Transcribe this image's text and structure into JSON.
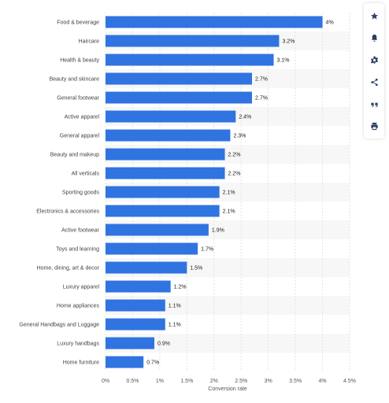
{
  "chart_data": {
    "type": "bar",
    "orientation": "horizontal",
    "categories": [
      "Food & beverage",
      "Haircare",
      "Health & beauty",
      "Beauty and skincare",
      "General footwear",
      "Active apparel",
      "General apparel",
      "Beauty and makeup",
      "All verticals",
      "Sporting goods",
      "Electronics & accessories",
      "Active footwear",
      "Toys and learning",
      "Home, dining, art & decor",
      "Luxury apparel",
      "Home appliances",
      "General Handbags and Luggage",
      "Luxury handbags",
      "Home furniture"
    ],
    "values": [
      4,
      3.2,
      3.1,
      2.7,
      2.7,
      2.4,
      2.3,
      2.2,
      2.2,
      2.1,
      2.1,
      1.9,
      1.7,
      1.5,
      1.2,
      1.1,
      1.1,
      0.9,
      0.7
    ],
    "value_labels": [
      "4%",
      "3.2%",
      "3.1%",
      "2.7%",
      "2.7%",
      "2.4%",
      "2.3%",
      "2.2%",
      "2.2%",
      "2.1%",
      "2.1%",
      "1.9%",
      "1.7%",
      "1.5%",
      "1.2%",
      "1.1%",
      "1.1%",
      "0.9%",
      "0.7%"
    ],
    "xlabel": "Conversion rate",
    "xlim": [
      0,
      4.5
    ],
    "xticks": [
      0,
      0.5,
      1,
      1.5,
      2,
      2.5,
      3,
      3.5,
      4,
      4.5
    ],
    "xtick_labels": [
      "0%",
      "0.5%",
      "1%",
      "1.5%",
      "2%",
      "2.5%",
      "3%",
      "3.5%",
      "4%",
      "4.5%"
    ],
    "bar_color": "#2f74e0",
    "grid": true
  },
  "toolbar": {
    "items": [
      {
        "name": "star-icon"
      },
      {
        "name": "bell-icon"
      },
      {
        "name": "gear-icon"
      },
      {
        "name": "share-icon"
      },
      {
        "name": "quote-icon"
      },
      {
        "name": "print-icon"
      }
    ]
  }
}
